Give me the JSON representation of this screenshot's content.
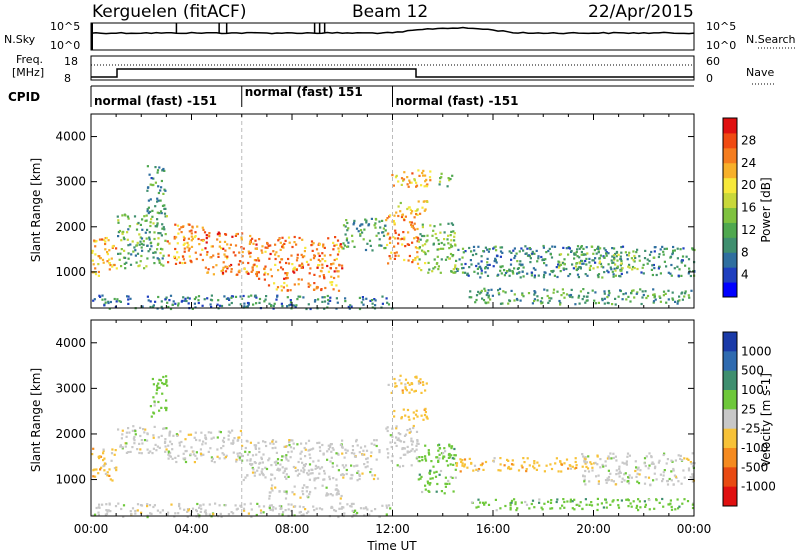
{
  "header": {
    "station": "Kerguelen (fitACF)",
    "beam": "Beam 12",
    "date": "22/Apr/2015"
  },
  "top_panel": {
    "left_label": "N.Sky",
    "right_label": "N.Search",
    "left_ticks": [
      "10^5",
      "10^0"
    ],
    "right_ticks": [
      "10^5",
      "10^0"
    ]
  },
  "freq_panel": {
    "left_label_1": "Freq.",
    "left_label_2": "[MHz]",
    "right_label": "Nave",
    "left_ticks": [
      "18",
      "8"
    ],
    "right_ticks": [
      "60",
      "0"
    ]
  },
  "cpid": {
    "label": "CPID",
    "modes": [
      {
        "label": "normal (fast) -151",
        "start_hour": 0,
        "end_hour": 6
      },
      {
        "label": "normal (fast) 151",
        "start_hour": 6,
        "end_hour": 12
      },
      {
        "label": "normal (fast) -151",
        "start_hour": 12,
        "end_hour": 24
      }
    ]
  },
  "chart_data": [
    {
      "type": "heatmap",
      "title": "Power",
      "ylabel": "Slant Range [km]",
      "xlabel": "",
      "xlim": [
        0,
        24
      ],
      "ylim": [
        200,
        4500
      ],
      "yticks": [
        1000,
        2000,
        3000,
        4000
      ],
      "colorbar": {
        "label": "Power [dB]",
        "ticks": [
          4,
          8,
          12,
          16,
          20,
          24,
          28
        ],
        "range": [
          0,
          32
        ],
        "colors": [
          "#0000ff",
          "#1f3fbf",
          "#2f6f9f",
          "#3f8f6f",
          "#4fa84f",
          "#7fc23f",
          "#c8d83a",
          "#f7e83a",
          "#f7b02a",
          "#f57d1f",
          "#f04a12",
          "#e01010"
        ]
      },
      "regions": [
        {
          "t0": 0.0,
          "t1": 1.0,
          "r0": 900,
          "r1": 1800,
          "value": 22
        },
        {
          "t0": 1.0,
          "t1": 3.0,
          "r0": 1100,
          "r1": 2300,
          "value": 12
        },
        {
          "t0": 2.2,
          "t1": 3.0,
          "r0": 2300,
          "r1": 3400,
          "value": 10
        },
        {
          "t0": 3.0,
          "t1": 4.5,
          "r0": 1200,
          "r1": 2100,
          "value": 24
        },
        {
          "t0": 4.5,
          "t1": 6.5,
          "r0": 950,
          "r1": 1900,
          "value": 26
        },
        {
          "t0": 6.5,
          "t1": 10.0,
          "r0": 850,
          "r1": 1800,
          "value": 25
        },
        {
          "t0": 7.0,
          "t1": 10.0,
          "r0": 600,
          "r1": 800,
          "value": 24
        },
        {
          "t0": 10.0,
          "t1": 11.7,
          "r0": 1500,
          "r1": 2200,
          "value": 11
        },
        {
          "t0": 11.7,
          "t1": 13.0,
          "r0": 1200,
          "r1": 2300,
          "value": 24
        },
        {
          "t0": 11.8,
          "t1": 13.5,
          "r0": 2900,
          "r1": 3300,
          "value": 22
        },
        {
          "t0": 12.0,
          "t1": 13.4,
          "r0": 2300,
          "r1": 2600,
          "value": 20
        },
        {
          "t0": 13.0,
          "t1": 14.5,
          "r0": 1000,
          "r1": 2100,
          "value": 14
        },
        {
          "t0": 13.8,
          "t1": 14.4,
          "r0": 2900,
          "r1": 3200,
          "value": 14
        },
        {
          "t0": 14.5,
          "t1": 24.0,
          "r0": 900,
          "r1": 1600,
          "value": 9
        },
        {
          "t0": 18.5,
          "t1": 22.0,
          "r0": 1050,
          "r1": 1450,
          "value": 14
        },
        {
          "t0": 15.0,
          "t1": 24.0,
          "r0": 300,
          "r1": 650,
          "value": 11
        },
        {
          "t0": 0.0,
          "t1": 12.0,
          "r0": 200,
          "r1": 500,
          "value": 8
        }
      ]
    },
    {
      "type": "heatmap",
      "title": "Velocity",
      "ylabel": "Slant Range [km]",
      "xlabel": "Time UT",
      "xlim": [
        0,
        24
      ],
      "ylim": [
        200,
        4500
      ],
      "xticks": [
        "00:00",
        "04:00",
        "08:00",
        "12:00",
        "16:00",
        "20:00",
        "00:00"
      ],
      "yticks": [
        1000,
        2000,
        3000,
        4000
      ],
      "colorbar": {
        "label": "Velocity [m s-1]",
        "ticks": [
          "1000",
          "500",
          "100",
          "25",
          "-25",
          "-100",
          "-500",
          "-1000"
        ],
        "colors": [
          "#1a3aa8",
          "#2f6bb0",
          "#3f8f6f",
          "#6ec83a",
          "#c8c8c8",
          "#f7c238",
          "#f58a1f",
          "#e84a12",
          "#e01010"
        ]
      },
      "regions": [
        {
          "t0": 0.0,
          "t1": 1.0,
          "r0": 1000,
          "r1": 1700,
          "value": "-100"
        },
        {
          "t0": 1.0,
          "t1": 3.0,
          "r0": 1600,
          "r1": 2200,
          "value": "25"
        },
        {
          "t0": 2.3,
          "t1": 3.0,
          "r0": 2400,
          "r1": 3300,
          "value": "100"
        },
        {
          "t0": 3.0,
          "t1": 6.0,
          "r0": 1400,
          "r1": 2100,
          "value": "25"
        },
        {
          "t0": 6.0,
          "t1": 11.5,
          "r0": 1000,
          "r1": 1900,
          "value": "25"
        },
        {
          "t0": 7.0,
          "t1": 10.0,
          "r0": 600,
          "r1": 900,
          "value": "25"
        },
        {
          "t0": 11.8,
          "t1": 13.4,
          "r0": 2900,
          "r1": 3300,
          "value": "-100"
        },
        {
          "t0": 12.0,
          "t1": 13.4,
          "r0": 2300,
          "r1": 2600,
          "value": "-100"
        },
        {
          "t0": 11.7,
          "t1": 13.0,
          "r0": 1300,
          "r1": 2200,
          "value": "25"
        },
        {
          "t0": 13.0,
          "t1": 14.5,
          "r0": 700,
          "r1": 1800,
          "value": "100"
        },
        {
          "t0": 14.5,
          "t1": 20.0,
          "r0": 1200,
          "r1": 1500,
          "value": "-100"
        },
        {
          "t0": 19.5,
          "t1": 24.0,
          "r0": 900,
          "r1": 1600,
          "value": "25"
        },
        {
          "t0": 15.0,
          "t1": 24.0,
          "r0": 350,
          "r1": 600,
          "value": "100"
        },
        {
          "t0": 0.0,
          "t1": 12.0,
          "r0": 200,
          "r1": 500,
          "value": "-25"
        }
      ]
    }
  ]
}
